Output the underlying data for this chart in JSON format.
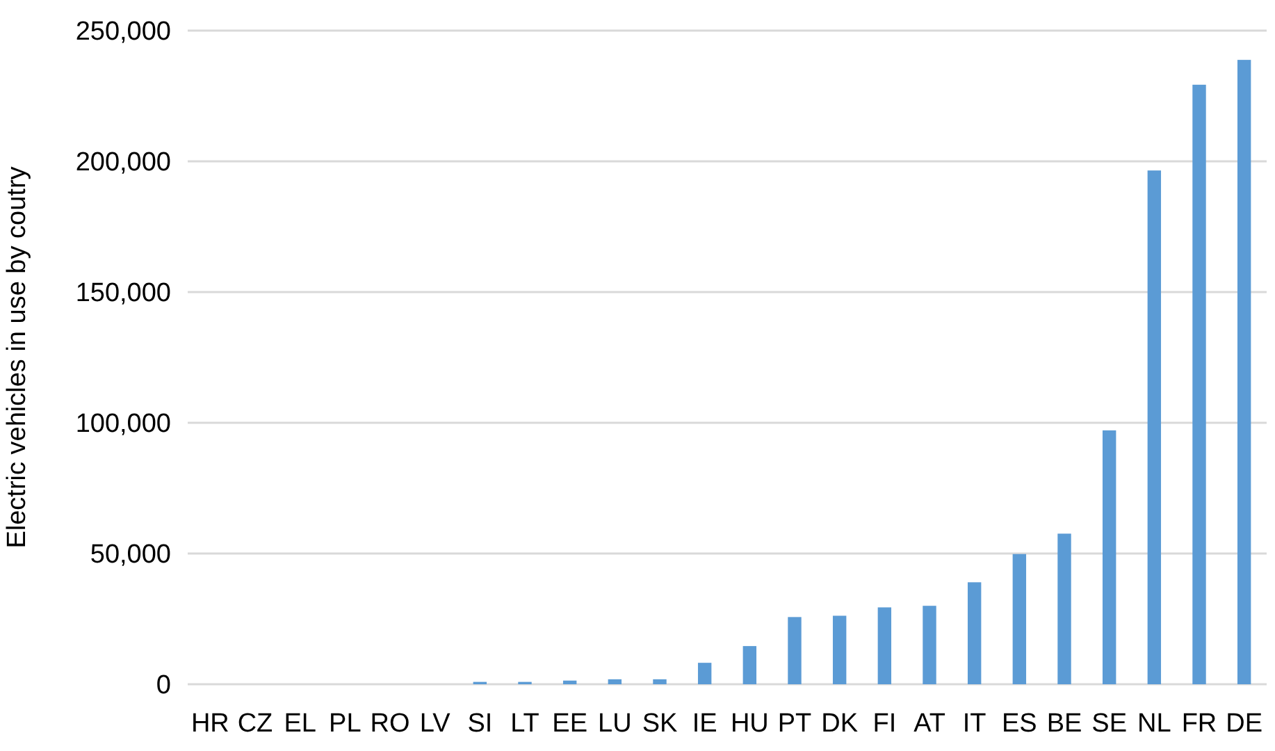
{
  "chart_data": {
    "type": "bar",
    "ylabel": "Electric vehicles in use by coutry",
    "categories": [
      "HR",
      "CZ",
      "EL",
      "PL",
      "RO",
      "LV",
      "SI",
      "LT",
      "EE",
      "LU",
      "SK",
      "IE",
      "HU",
      "PT",
      "DK",
      "FI",
      "AT",
      "IT",
      "ES",
      "BE",
      "SE",
      "NL",
      "FR",
      "DE"
    ],
    "values": [
      0,
      0,
      0,
      0,
      0,
      0,
      900,
      900,
      1400,
      1900,
      1900,
      8200,
      14600,
      25700,
      26200,
      29400,
      30000,
      39000,
      49800,
      57600,
      97100,
      196500,
      229300,
      238800
    ],
    "color": "#5b9bd5",
    "ylim": [
      0,
      250000
    ],
    "yticks": [
      {
        "value": 0,
        "label": "0"
      },
      {
        "value": 50000,
        "label": "50,000"
      },
      {
        "value": 100000,
        "label": "100,000"
      },
      {
        "value": 150000,
        "label": "150,000"
      },
      {
        "value": 200000,
        "label": "200,000"
      },
      {
        "value": 250000,
        "label": "250,000"
      }
    ],
    "grid": "y"
  }
}
